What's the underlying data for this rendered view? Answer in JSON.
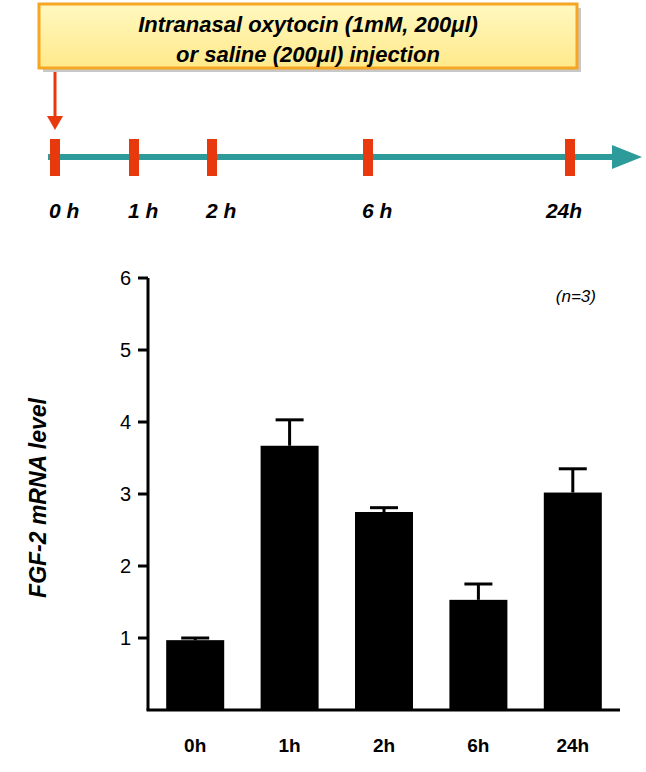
{
  "chart_data": {
    "type": "bar",
    "y_label": "FGF-2 mRNA level",
    "annotation": "(n=3)",
    "categories": [
      "0h",
      "1h",
      "2h",
      "6h",
      "24h"
    ],
    "values": [
      0.97,
      3.67,
      2.75,
      1.53,
      3.02
    ],
    "errors": [
      0.03,
      0.36,
      0.06,
      0.22,
      0.33
    ],
    "color": "#000000",
    "ylim": [
      0,
      6
    ],
    "yticks": [
      1,
      2,
      3,
      4,
      5,
      6
    ],
    "grid": false
  },
  "timeline": {
    "box_lines": [
      "Intranasal oxytocin (1mM, 200μl)",
      "or saline (200μl) injection"
    ],
    "ticks": [
      "0 h",
      "1 h",
      "2 h",
      "6 h",
      "24h"
    ]
  }
}
